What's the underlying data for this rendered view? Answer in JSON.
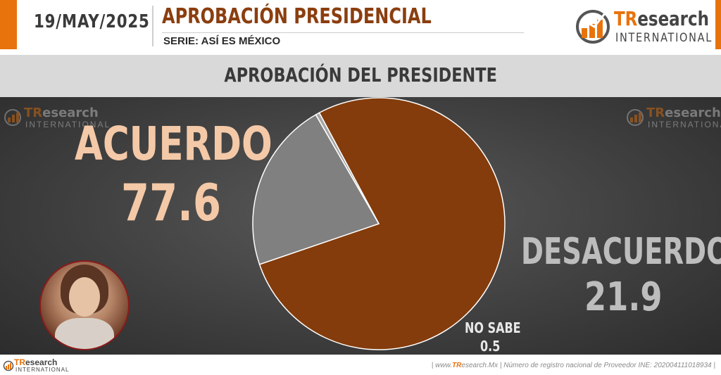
{
  "header": {
    "date": "19/MAY/2025",
    "title": "APROBACIÓN PRESIDENCIAL",
    "subtitle": "SERIE: ASÍ ES MÉXICO",
    "logo": {
      "brand_tr": "TR",
      "brand_rest": "esearch",
      "tagline": "INTERNATIONAL"
    }
  },
  "section": {
    "title": "APROBACIÓN DEL PRESIDENTE"
  },
  "chart_data": {
    "type": "pie",
    "title": "APROBACIÓN DEL PRESIDENTE",
    "slices": [
      {
        "label": "ACUERDO",
        "value": 77.6,
        "color": "#843C0C"
      },
      {
        "label": "DESACUERDO",
        "value": 21.9,
        "color": "#808080"
      },
      {
        "label": "NO SABE",
        "value": 0.5,
        "color": "#A6A6A6"
      }
    ],
    "labels_display": {
      "acuerdo": {
        "label": "ACUERDO",
        "value": "77.6"
      },
      "desacuerdo": {
        "label": "DESACUERDO",
        "value": "21.9"
      },
      "nosabe": {
        "label": "NO SABE",
        "value": "0.5"
      }
    }
  },
  "footer": {
    "prefix": "| www.",
    "site_tr": "TR",
    "site_rest": "esearch.Mx | Número de registro nacional de Proveedor INE: 202004111018934 |",
    "logo": {
      "brand_tr": "TR",
      "brand_rest": "esearch",
      "tagline": "INTERNATIONAL"
    }
  },
  "colors": {
    "accent": "#E8730C",
    "brand_dark": "#8B3E0F",
    "acuerdo_text": "#F4C9A8",
    "desacuerdo_text": "#BDBDBD"
  }
}
